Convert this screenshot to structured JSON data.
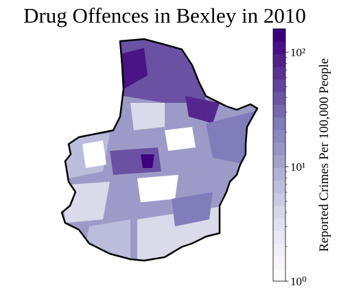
{
  "chart_data": {
    "type": "choropleth",
    "title": "Drug Offences in Bexley in 2010",
    "colorbar_label": "Reported Crimes Per 100,000 People",
    "colormap": "Purples",
    "log_scale": true,
    "levels": 20,
    "clim": [
      1,
      160
    ],
    "cticks": [
      {
        "value": 1,
        "label": "10⁰"
      },
      {
        "value": 10,
        "label": "10¹"
      },
      {
        "value": 100,
        "label": "10²"
      }
    ]
  }
}
